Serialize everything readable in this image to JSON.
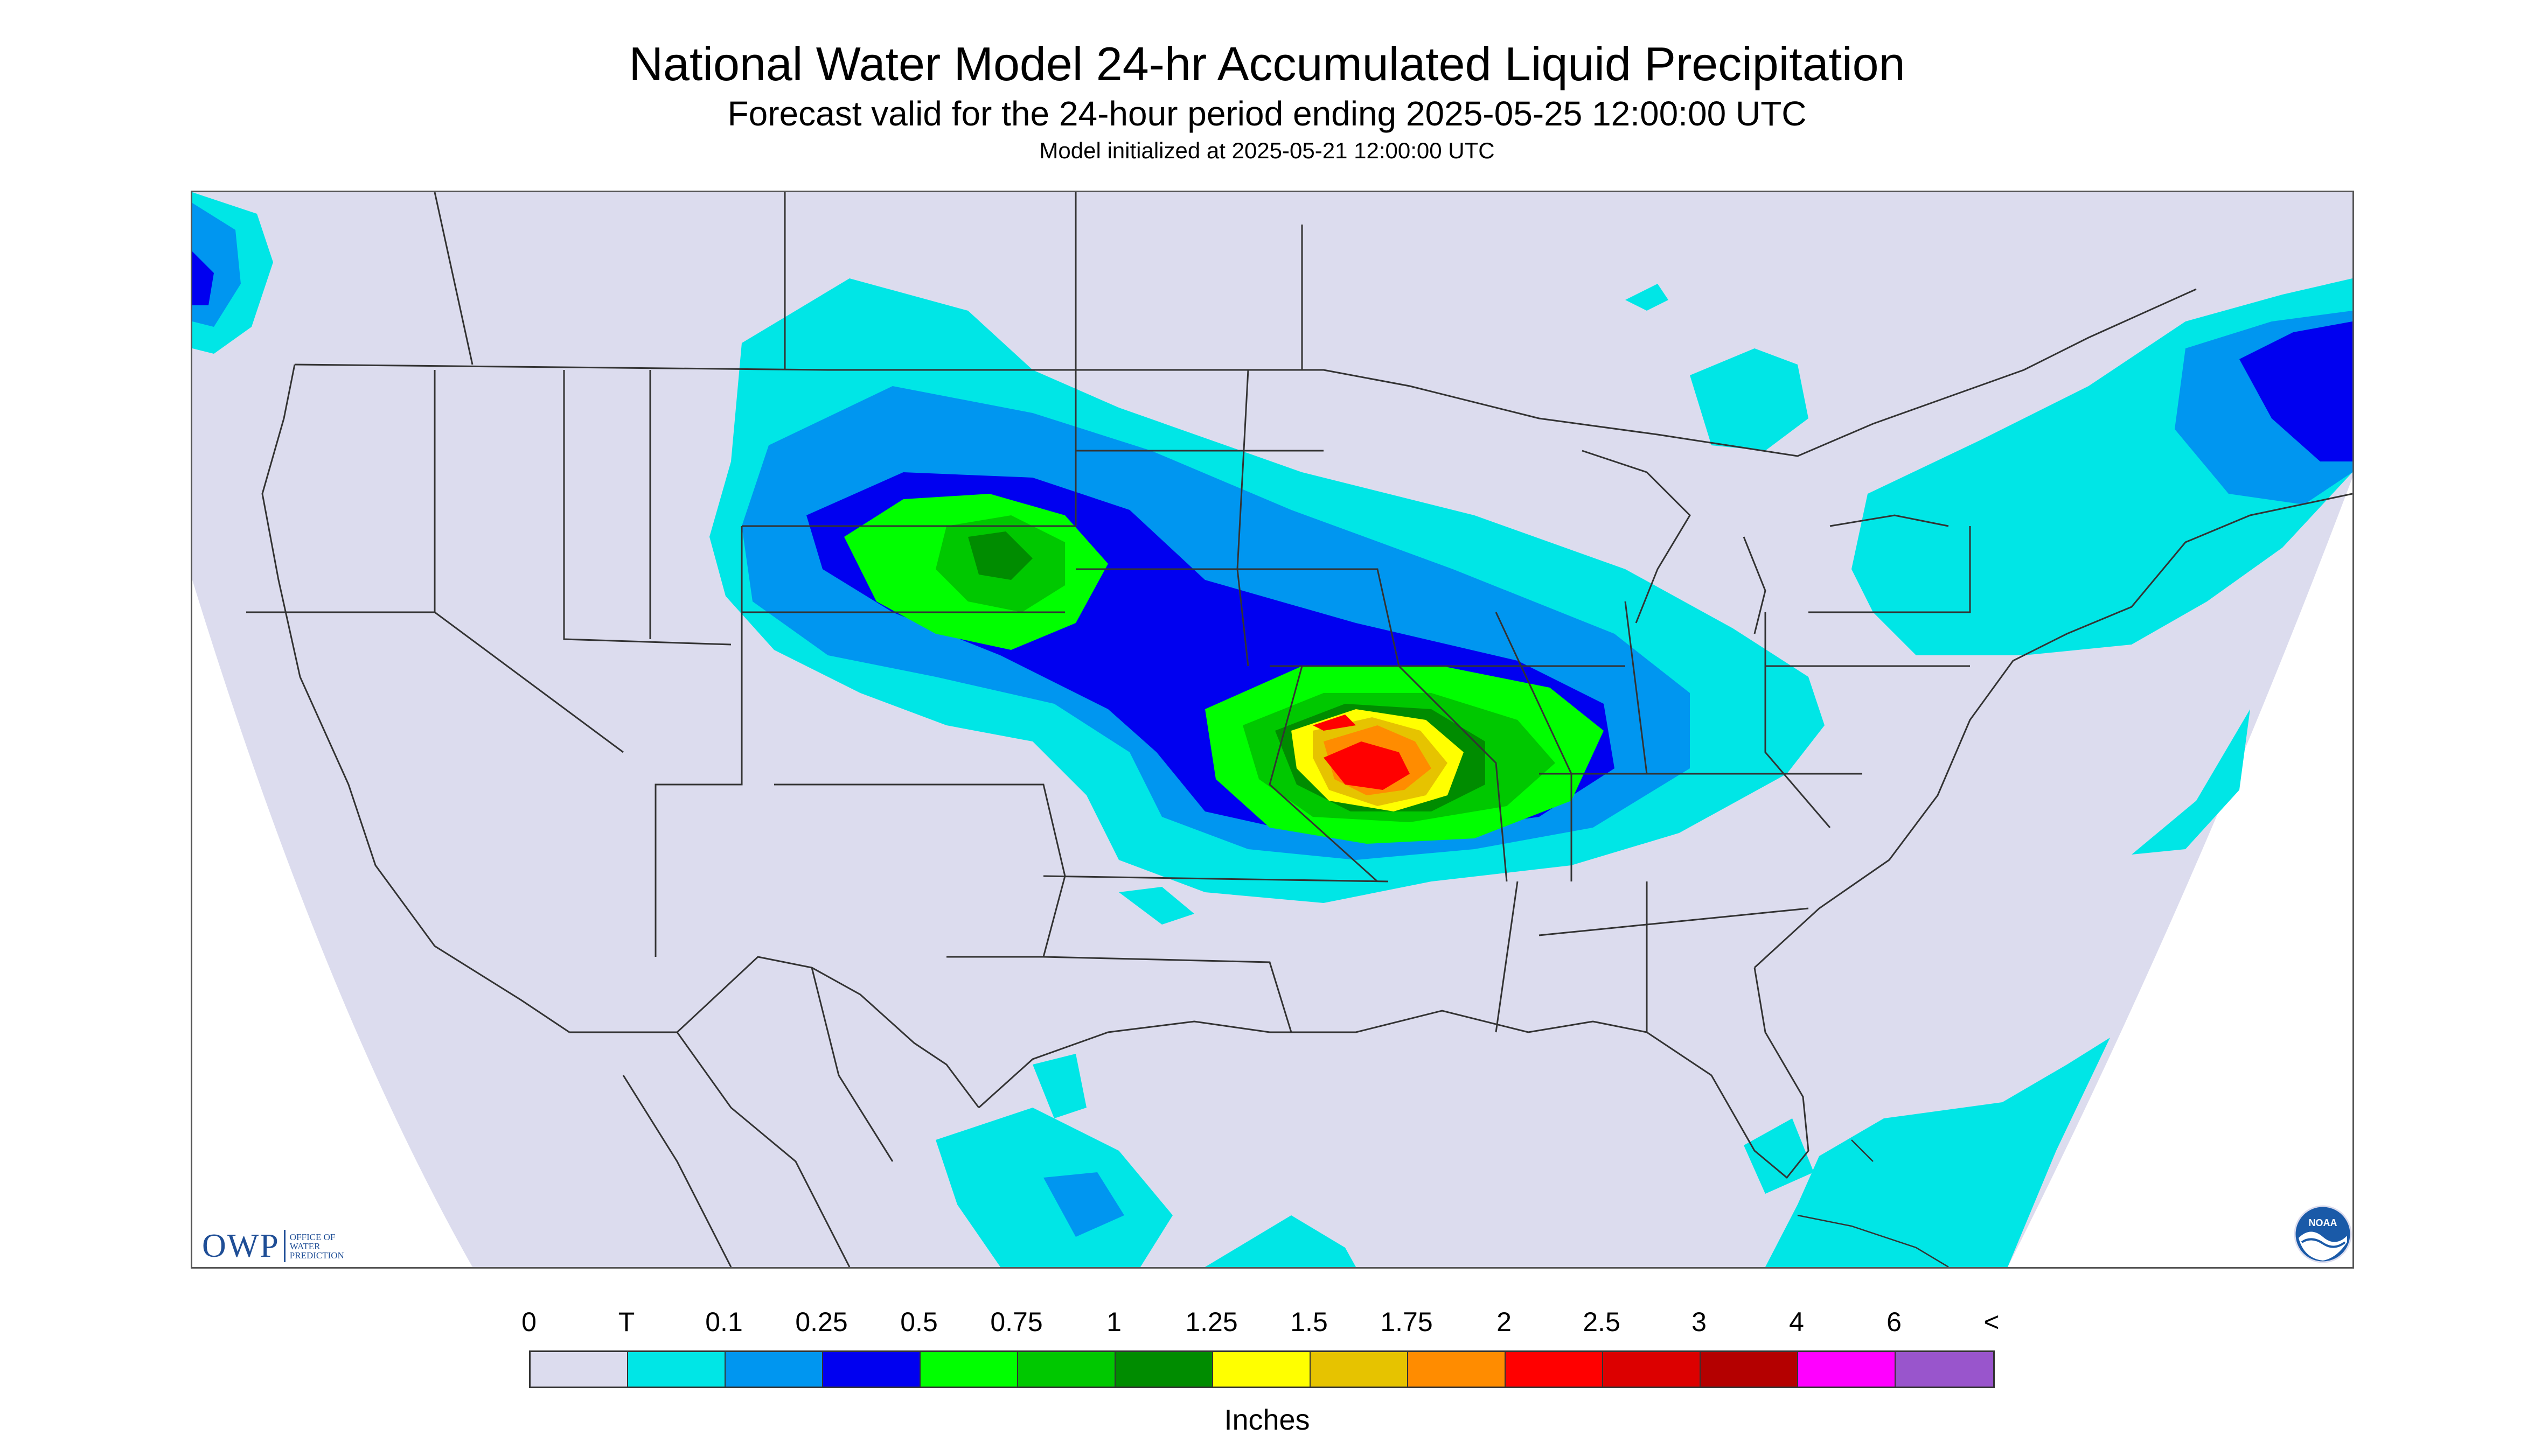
{
  "header": {
    "title": "National Water Model 24-hr Accumulated Liquid Precipitation",
    "subtitle": "Forecast valid for the 24-hour period ending 2025-05-25 12:00:00 UTC",
    "init_line": "Model initialized at 2025-05-21 12:00:00 UTC"
  },
  "map": {
    "background_color": "#dcdcee",
    "outside_domain_color": "#ffffff",
    "border_color": "#333333"
  },
  "logos": {
    "owp": {
      "abbrev": "OWP",
      "line1": "OFFICE OF",
      "line2": "WATER",
      "line3": "PREDICTION",
      "color": "#1f4e96",
      "icon": "owp-logo"
    },
    "noaa": {
      "text": "NOAA",
      "icon": "noaa-logo"
    }
  },
  "legend": {
    "labels": [
      "0",
      "T",
      "0.1",
      "0.25",
      "0.5",
      "0.75",
      "1",
      "1.25",
      "1.5",
      "1.75",
      "2",
      "2.5",
      "3",
      "4",
      "6",
      "<"
    ],
    "colors": [
      "#dcdcee",
      "#00e6e6",
      "#0096f0",
      "#0000f0",
      "#00ff00",
      "#00c800",
      "#008c00",
      "#ffff00",
      "#e6c300",
      "#ff8c00",
      "#ff0000",
      "#dc0000",
      "#b40000",
      "#ff00ff",
      "#9955cc"
    ],
    "units": "Inches"
  }
}
